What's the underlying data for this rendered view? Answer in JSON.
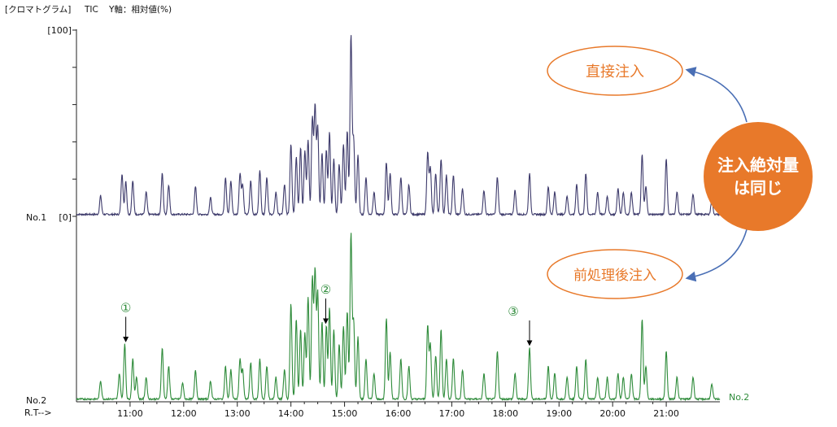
{
  "header": {
    "title": "[クロマトグラム]",
    "mode": "TIC",
    "axis_note": "Y軸：相対値(%)"
  },
  "axis": {
    "y_max_label": "[100]",
    "y_min_label": "[0]",
    "trace1_label": "No.1",
    "trace2_label": "No.2",
    "trace2_end_label": "No.2",
    "rt_label": "R.T-->"
  },
  "chart_data": {
    "type": "line",
    "title": "[クロマトグラム] TIC Y軸：相対値(%)",
    "xlabel": "R.T-->",
    "ylabel": "相対値(%)",
    "xlim": [
      10.0,
      22.0
    ],
    "ylim": [
      0,
      100
    ],
    "x_ticks": [
      "11:00",
      "12:00",
      "13:00",
      "14:00",
      "15:00",
      "16:00",
      "17:00",
      "18:00",
      "19:00",
      "20:00",
      "21:00"
    ],
    "series": [
      {
        "name": "No.1",
        "color": "#3d3a6b",
        "peaks": [
          [
            10.45,
            10
          ],
          [
            10.85,
            22
          ],
          [
            10.92,
            18
          ],
          [
            11.05,
            18
          ],
          [
            11.3,
            12
          ],
          [
            11.6,
            22
          ],
          [
            11.72,
            16
          ],
          [
            12.22,
            15
          ],
          [
            12.5,
            9
          ],
          [
            12.78,
            20
          ],
          [
            12.88,
            18
          ],
          [
            13.05,
            22
          ],
          [
            13.1,
            16
          ],
          [
            13.25,
            18
          ],
          [
            13.42,
            24
          ],
          [
            13.55,
            20
          ],
          [
            13.72,
            12
          ],
          [
            13.88,
            16
          ],
          [
            14.0,
            38
          ],
          [
            14.1,
            31
          ],
          [
            14.18,
            36
          ],
          [
            14.26,
            34
          ],
          [
            14.32,
            40
          ],
          [
            14.4,
            52
          ],
          [
            14.45,
            58
          ],
          [
            14.5,
            47
          ],
          [
            14.58,
            33
          ],
          [
            14.66,
            35
          ],
          [
            14.72,
            44
          ],
          [
            14.8,
            30
          ],
          [
            14.9,
            27
          ],
          [
            14.98,
            38
          ],
          [
            15.05,
            45
          ],
          [
            15.12,
            96
          ],
          [
            15.17,
            40
          ],
          [
            15.25,
            32
          ],
          [
            15.4,
            20
          ],
          [
            15.55,
            12
          ],
          [
            15.78,
            28
          ],
          [
            15.85,
            22
          ],
          [
            16.05,
            20
          ],
          [
            16.2,
            16
          ],
          [
            16.55,
            33
          ],
          [
            16.6,
            25
          ],
          [
            16.7,
            22
          ],
          [
            16.8,
            30
          ],
          [
            16.9,
            21
          ],
          [
            17.03,
            21
          ],
          [
            17.2,
            14
          ],
          [
            17.6,
            13
          ],
          [
            17.85,
            20
          ],
          [
            18.18,
            13
          ],
          [
            18.45,
            22
          ],
          [
            18.8,
            15
          ],
          [
            18.92,
            12
          ],
          [
            19.15,
            10
          ],
          [
            19.33,
            16
          ],
          [
            19.5,
            22
          ],
          [
            19.72,
            12
          ],
          [
            19.9,
            10
          ],
          [
            20.1,
            14
          ],
          [
            20.2,
            12
          ],
          [
            20.35,
            12
          ],
          [
            20.55,
            32
          ],
          [
            20.62,
            15
          ],
          [
            21.0,
            30
          ],
          [
            21.2,
            12
          ],
          [
            21.5,
            11
          ],
          [
            21.85,
            8
          ]
        ]
      },
      {
        "name": "No.2",
        "color": "#2e8b3a",
        "peaks": [
          [
            10.45,
            10
          ],
          [
            10.8,
            14
          ],
          [
            10.9,
            30
          ],
          [
            11.05,
            22
          ],
          [
            11.12,
            12
          ],
          [
            11.3,
            12
          ],
          [
            11.6,
            28
          ],
          [
            11.72,
            18
          ],
          [
            11.98,
            9
          ],
          [
            12.22,
            16
          ],
          [
            12.5,
            10
          ],
          [
            12.78,
            18
          ],
          [
            12.88,
            16
          ],
          [
            13.05,
            22
          ],
          [
            13.1,
            16
          ],
          [
            13.25,
            20
          ],
          [
            13.42,
            22
          ],
          [
            13.55,
            18
          ],
          [
            13.72,
            12
          ],
          [
            13.88,
            16
          ],
          [
            14.0,
            52
          ],
          [
            14.1,
            44
          ],
          [
            14.18,
            38
          ],
          [
            14.26,
            36
          ],
          [
            14.32,
            56
          ],
          [
            14.4,
            66
          ],
          [
            14.45,
            70
          ],
          [
            14.5,
            58
          ],
          [
            14.58,
            42
          ],
          [
            14.66,
            40
          ],
          [
            14.72,
            50
          ],
          [
            14.8,
            38
          ],
          [
            14.9,
            30
          ],
          [
            14.98,
            40
          ],
          [
            15.05,
            48
          ],
          [
            15.12,
            90
          ],
          [
            15.17,
            42
          ],
          [
            15.25,
            34
          ],
          [
            15.4,
            22
          ],
          [
            15.55,
            14
          ],
          [
            15.78,
            44
          ],
          [
            15.85,
            26
          ],
          [
            16.05,
            22
          ],
          [
            16.2,
            18
          ],
          [
            16.55,
            40
          ],
          [
            16.6,
            30
          ],
          [
            16.7,
            24
          ],
          [
            16.8,
            38
          ],
          [
            16.9,
            22
          ],
          [
            17.03,
            22
          ],
          [
            17.2,
            16
          ],
          [
            17.6,
            14
          ],
          [
            17.85,
            26
          ],
          [
            18.18,
            14
          ],
          [
            18.45,
            28
          ],
          [
            18.8,
            18
          ],
          [
            18.92,
            14
          ],
          [
            19.15,
            12
          ],
          [
            19.33,
            18
          ],
          [
            19.5,
            22
          ],
          [
            19.72,
            12
          ],
          [
            19.9,
            12
          ],
          [
            20.1,
            14
          ],
          [
            20.2,
            12
          ],
          [
            20.35,
            14
          ],
          [
            20.55,
            44
          ],
          [
            20.62,
            18
          ],
          [
            21.0,
            26
          ],
          [
            21.2,
            12
          ],
          [
            21.5,
            12
          ],
          [
            21.85,
            8
          ]
        ]
      }
    ],
    "markers": [
      {
        "label": "①",
        "rt": 10.92,
        "series": "No.2"
      },
      {
        "label": "②",
        "rt": 14.65,
        "series": "No.2"
      },
      {
        "label": "③",
        "rt": 18.45,
        "series": "No.2"
      }
    ]
  },
  "annotations": {
    "direct_injection": "直接注入",
    "pretreatment_injection": "前処理後注入",
    "same_amount_line1": "注入絶対量",
    "same_amount_line2": "は同じ",
    "accent_color": "#e8792a",
    "arrow_color": "#4a6fb5"
  }
}
